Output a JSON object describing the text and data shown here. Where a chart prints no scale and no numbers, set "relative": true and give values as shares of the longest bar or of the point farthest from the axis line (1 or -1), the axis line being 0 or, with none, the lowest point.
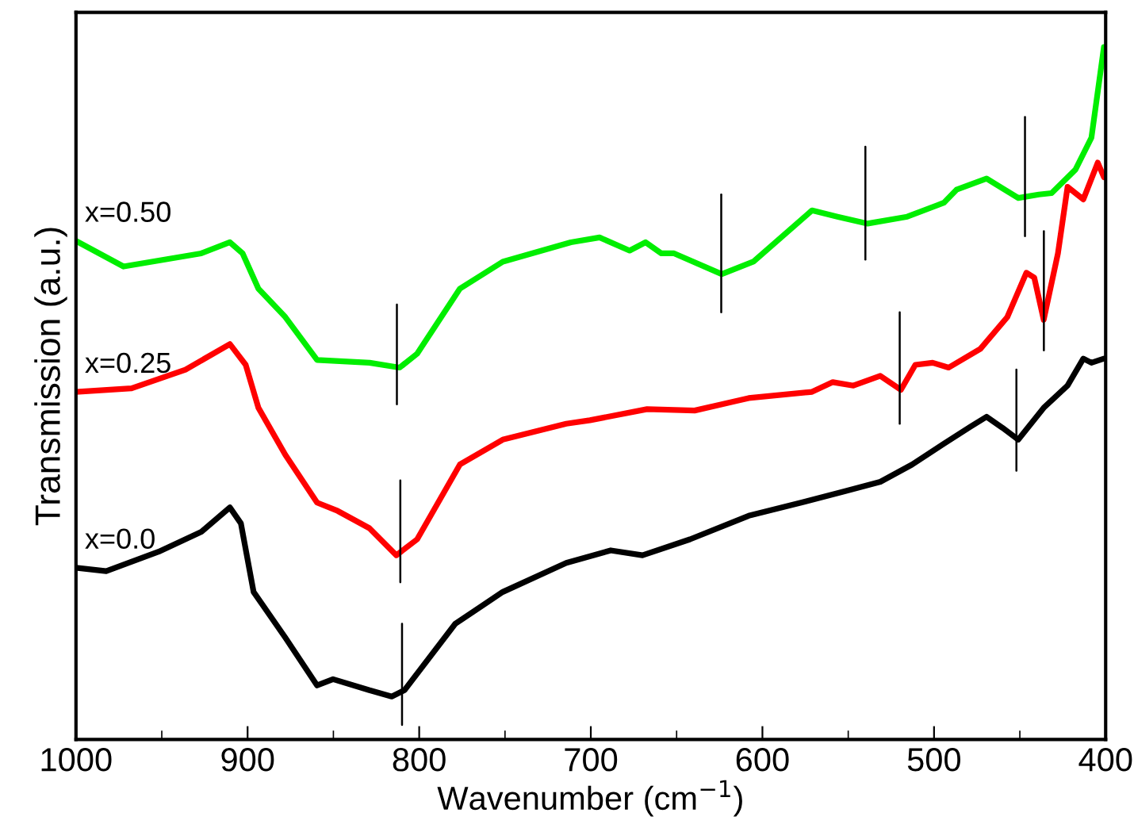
{
  "chart_data": {
    "type": "line",
    "relative": true,
    "xlabel": "Wavenumber (cm$^{−1}$)",
    "ylabel": "Transmission (a.u.)",
    "xlim": [
      1000,
      400
    ],
    "xticks": [
      1000,
      900,
      800,
      700,
      600,
      500,
      400
    ],
    "legend": false,
    "grid": false,
    "series": [
      {
        "name": "x=0.50",
        "color": "#00ee00",
        "x": [
          1000,
          972.3,
          927.0,
          910.3,
          902.9,
          893.7,
          878.0,
          859.5,
          828.9,
          811.4,
          801.2,
          776.3,
          751.3,
          711.6,
          694.9,
          677.4,
          668.1,
          658.9,
          651.5,
          623.7,
          605.3,
          571.1,
          556.3,
          538.7,
          515.6,
          494.3,
          486.9,
          469.4,
          450.9,
          438.9,
          431.5,
          417.6,
          408.3,
          401
        ],
        "values": [
          0.72,
          0.683,
          0.702,
          0.718,
          0.702,
          0.651,
          0.61,
          0.548,
          0.544,
          0.537,
          0.557,
          0.651,
          0.69,
          0.718,
          0.725,
          0.706,
          0.718,
          0.702,
          0.702,
          0.672,
          0.69,
          0.764,
          0.755,
          0.745,
          0.755,
          0.775,
          0.794,
          0.81,
          0.782,
          0.787,
          0.789,
          0.823,
          0.869,
          1.0
        ]
      },
      {
        "name": "x=0.25",
        "color": "#ff0000",
        "x": [
          1000,
          967.6,
          936.2,
          910.3,
          901.1,
          893.7,
          878.0,
          859.5,
          847.5,
          829.0,
          813.3,
          801.2,
          776.3,
          751.3,
          714.3,
          700.5,
          667.2,
          639.5,
          608.0,
          571.1,
          559.0,
          547.0,
          531.3,
          519.3,
          510.9,
          500.8,
          491.5,
          473.0,
          457.3,
          446.2,
          441.6,
          436.1,
          427.8,
          422.2,
          413.0,
          404.6,
          401
        ],
        "values": [
          0.502,
          0.507,
          0.534,
          0.571,
          0.541,
          0.479,
          0.411,
          0.342,
          0.33,
          0.305,
          0.266,
          0.289,
          0.397,
          0.433,
          0.456,
          0.461,
          0.477,
          0.475,
          0.493,
          0.502,
          0.516,
          0.511,
          0.525,
          0.505,
          0.541,
          0.544,
          0.537,
          0.564,
          0.61,
          0.674,
          0.667,
          0.606,
          0.702,
          0.798,
          0.78,
          0.833,
          0.812
        ]
      },
      {
        "name": "x=0.0",
        "color": "#000000",
        "x": [
          1000,
          982.4,
          951.9,
          926.9,
          910.3,
          903.9,
          896.5,
          878.0,
          859.5,
          850.2,
          829.0,
          816.0,
          808.6,
          779.0,
          751.3,
          714.3,
          688.4,
          669.9,
          642.2,
          608.0,
          577.5,
          552.6,
          531.3,
          512.8,
          494.3,
          478.6,
          469.4,
          460.1,
          450.9,
          436.1,
          422.2,
          413.0,
          408.3,
          401
        ],
        "values": [
          0.248,
          0.243,
          0.271,
          0.3,
          0.335,
          0.312,
          0.213,
          0.147,
          0.078,
          0.087,
          0.071,
          0.062,
          0.071,
          0.167,
          0.213,
          0.255,
          0.273,
          0.266,
          0.289,
          0.323,
          0.342,
          0.358,
          0.372,
          0.397,
          0.427,
          0.452,
          0.466,
          0.45,
          0.433,
          0.479,
          0.511,
          0.55,
          0.544,
          0.55
        ]
      },
      {
        "color": "#000000",
        "x": [
          813,
          813
        ],
        "values": [
          0.628,
          0.484
        ]
      },
      {
        "color": "#000000",
        "x": [
          811,
          811
        ],
        "values": [
          0.374,
          0.227
        ]
      },
      {
        "color": "#000000",
        "x": [
          810,
          810
        ],
        "values": [
          0.167,
          0.021
        ]
      },
      {
        "color": "#000000",
        "x": [
          624,
          624
        ],
        "values": [
          0.787,
          0.617
        ]
      },
      {
        "color": "#000000",
        "x": [
          540,
          540
        ],
        "values": [
          0.856,
          0.693
        ]
      },
      {
        "color": "#000000",
        "x": [
          447,
          447
        ],
        "values": [
          0.899,
          0.727
        ]
      },
      {
        "color": "#000000",
        "x": [
          520,
          520
        ],
        "values": [
          0.617,
          0.456
        ]
      },
      {
        "color": "#000000",
        "x": [
          436,
          436
        ],
        "values": [
          0.734,
          0.562
        ]
      },
      {
        "color": "#000000",
        "x": [
          452,
          452
        ],
        "values": [
          0.534,
          0.388
        ]
      }
    ]
  }
}
